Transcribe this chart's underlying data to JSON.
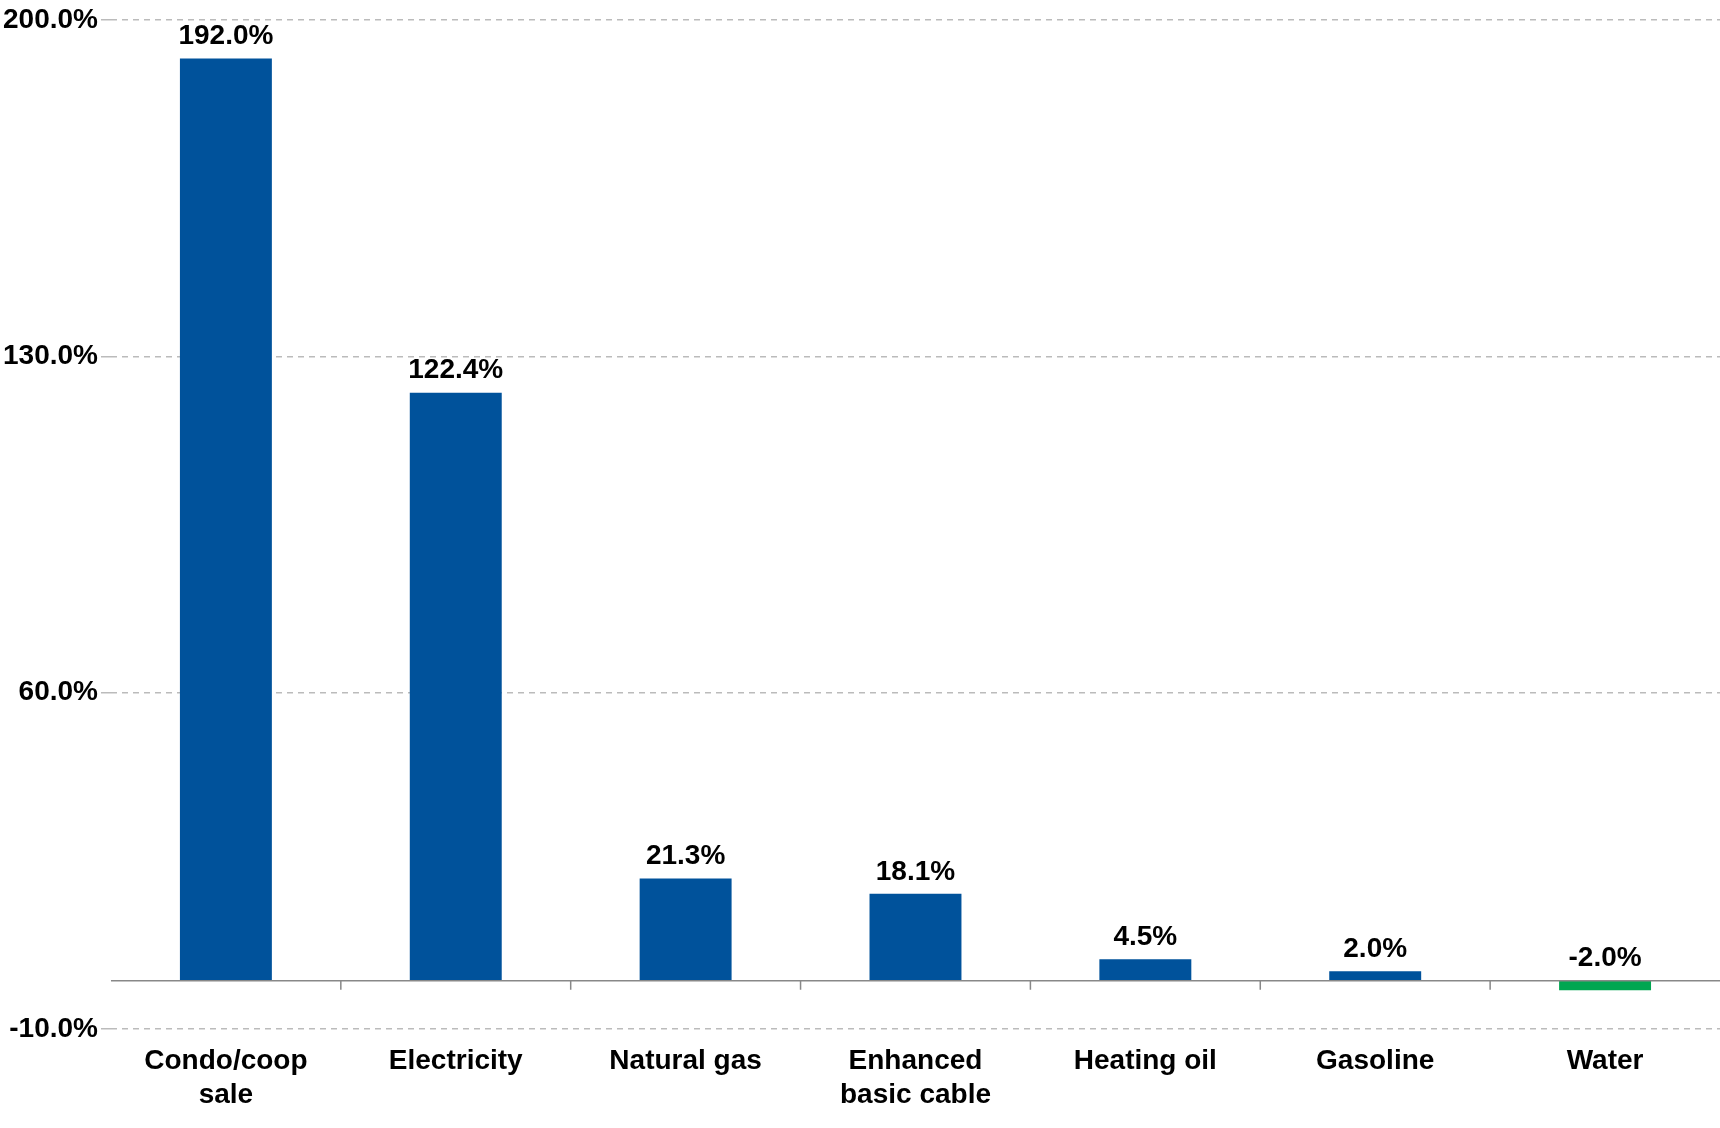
{
  "chart_data": {
    "type": "bar",
    "categories": [
      "Condo/coop sale",
      "Electricity",
      "Natural gas",
      "Enhanced basic cable",
      "Heating oil",
      "Gasoline",
      "Water"
    ],
    "values": [
      192.0,
      122.4,
      21.3,
      18.1,
      4.5,
      2.0,
      -2.0
    ],
    "colors": [
      "#00529b",
      "#00529b",
      "#00529b",
      "#00529b",
      "#00529b",
      "#00529b",
      "#00a651"
    ],
    "value_labels": [
      "192.0%",
      "122.4%",
      "21.3%",
      "18.1%",
      "4.5%",
      "2.0%",
      "-2.0%"
    ],
    "ylim": [
      -10,
      200
    ],
    "yticks": [
      {
        "value": -10,
        "label": "-10.0%"
      },
      {
        "value": 60,
        "label": "60.0%"
      },
      {
        "value": 130,
        "label": "130.0%"
      },
      {
        "value": 200,
        "label": "200.0%"
      }
    ],
    "grid": "y",
    "legend": false
  }
}
